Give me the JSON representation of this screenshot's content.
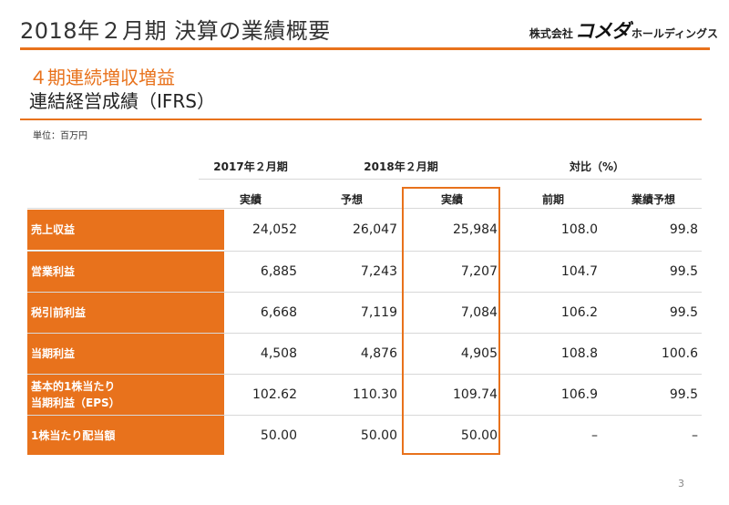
{
  "header": {
    "title": "2018年２月期 決算の業績概要",
    "logo_prefix": "株式会社",
    "logo_brand": "コメダ",
    "logo_suffix": "ホールディングス"
  },
  "subtitle": {
    "line1": "４期連続増収増益",
    "line2": "連結経営成績（IFRS）"
  },
  "unit_label": "単位：百万円",
  "table": {
    "period_headers": [
      "2017年２月期",
      "2018年２月期",
      "対比（%）"
    ],
    "column_headers": [
      "実績",
      "予想",
      "実績",
      "前期",
      "業績予想"
    ],
    "rows": [
      {
        "label": "売上収益",
        "values": [
          "24,052",
          "26,047",
          "25,984",
          "108.0",
          "99.8"
        ]
      },
      {
        "label": "営業利益",
        "values": [
          "6,885",
          "7,243",
          "7,207",
          "104.7",
          "99.5"
        ]
      },
      {
        "label": "税引前利益",
        "values": [
          "6,668",
          "7,119",
          "7,084",
          "106.2",
          "99.5"
        ]
      },
      {
        "label": "当期利益",
        "values": [
          "4,508",
          "4,876",
          "4,905",
          "108.8",
          "100.6"
        ]
      },
      {
        "label": "基本的1株当たり当期利益（EPS）",
        "label_line1": "基本的1株当たり",
        "label_line2": "当期利益（EPS）",
        "values": [
          "102.62",
          "110.30",
          "109.74",
          "106.9",
          "99.5"
        ]
      },
      {
        "label": "1株当たり配当額",
        "values": [
          "50.00",
          "50.00",
          "50.00",
          "–",
          "–"
        ]
      }
    ]
  },
  "page_number": "3",
  "colors": {
    "accent": "#e8721c"
  }
}
